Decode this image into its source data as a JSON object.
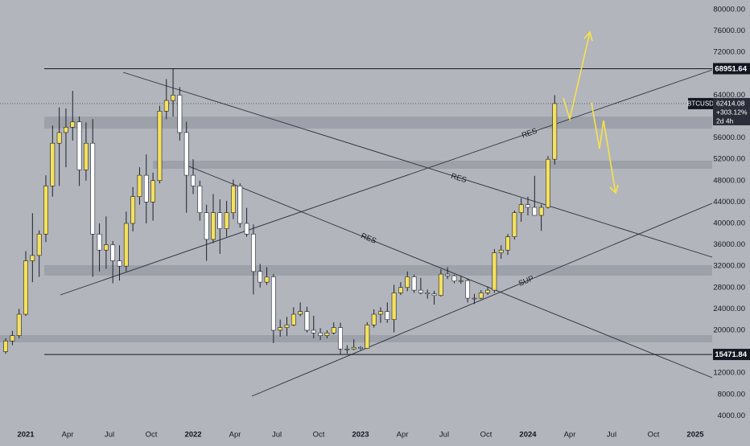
{
  "chart_data": {
    "type": "candlestick",
    "symbol": "BTCUSD",
    "x": [
      2020.88,
      2020.92,
      2020.96,
      2021.0,
      2021.04,
      2021.08,
      2021.12,
      2021.16,
      2021.2,
      2021.24,
      2021.28,
      2021.32,
      2021.36,
      2021.4,
      2021.44,
      2021.48,
      2021.52,
      2021.56,
      2021.6,
      2021.64,
      2021.68,
      2021.72,
      2021.76,
      2021.8,
      2021.84,
      2021.88,
      2021.92,
      2021.96,
      2022.0,
      2022.04,
      2022.08,
      2022.12,
      2022.16,
      2022.2,
      2022.24,
      2022.28,
      2022.32,
      2022.36,
      2022.4,
      2022.44,
      2022.48,
      2022.52,
      2022.56,
      2022.6,
      2022.64,
      2022.68,
      2022.72,
      2022.76,
      2022.8,
      2022.84,
      2022.88,
      2022.92,
      2022.96,
      2023.0,
      2023.04,
      2023.08,
      2023.12,
      2023.16,
      2023.2,
      2023.24,
      2023.28,
      2023.32,
      2023.36,
      2023.4,
      2023.44,
      2023.48,
      2023.52,
      2023.56,
      2023.6,
      2023.64,
      2023.68,
      2023.72,
      2023.76,
      2023.8,
      2023.84,
      2023.88,
      2023.92,
      2023.96,
      2024.0,
      2024.04,
      2024.08,
      2024.12,
      2024.16
    ],
    "open": [
      16000,
      18000,
      19000,
      23000,
      33000,
      34000,
      38000,
      47000,
      55000,
      57000,
      58000,
      59000,
      50000,
      55000,
      38000,
      35000,
      36000,
      33000,
      32000,
      40000,
      45000,
      49000,
      44000,
      48000,
      61000,
      63000,
      64000,
      57000,
      49000,
      47000,
      42000,
      37000,
      42000,
      39000,
      42000,
      47000,
      40000,
      38000,
      31000,
      29000,
      30000,
      20000,
      20500,
      21000,
      23000,
      23500,
      20000,
      19500,
      19000,
      19500,
      20500,
      16500,
      16500,
      16800,
      16600,
      21000,
      23000,
      23500,
      22000,
      27000,
      28000,
      30000,
      27500,
      27000,
      26800,
      26500,
      30500,
      30200,
      29200,
      29300,
      26000,
      26000,
      27000,
      27500,
      34500,
      35000,
      37500,
      42000,
      43500,
      43000,
      41500,
      43000,
      52000
    ],
    "high": [
      18500,
      19900,
      24000,
      34800,
      41900,
      38700,
      49000,
      58300,
      61700,
      61500,
      64800,
      60000,
      58900,
      59500,
      40000,
      41300,
      36700,
      35900,
      42200,
      46800,
      50500,
      52900,
      49500,
      62000,
      67000,
      68900,
      65500,
      59000,
      52000,
      48000,
      43500,
      45500,
      44500,
      44200,
      48200,
      47500,
      42900,
      39800,
      32400,
      31800,
      30500,
      22000,
      22500,
      24300,
      25200,
      24400,
      22700,
      20400,
      20000,
      21500,
      21400,
      17200,
      18300,
      17000,
      21500,
      23900,
      24300,
      25200,
      28500,
      29000,
      31000,
      30400,
      29800,
      27600,
      27400,
      31400,
      31800,
      30400,
      30200,
      29700,
      26800,
      27500,
      28200,
      35200,
      35900,
      38000,
      42400,
      44700,
      45000,
      48900,
      43500,
      52600,
      64000
    ],
    "low": [
      15600,
      17200,
      18500,
      22700,
      29000,
      30000,
      36500,
      45000,
      47000,
      50500,
      55500,
      47000,
      48000,
      30000,
      31000,
      31500,
      28800,
      29300,
      31000,
      38500,
      43500,
      40000,
      40500,
      47500,
      59500,
      60000,
      55500,
      42000,
      45500,
      40500,
      33000,
      36300,
      34300,
      37500,
      40800,
      39200,
      37500,
      26700,
      28000,
      28500,
      17600,
      18800,
      18900,
      20800,
      22600,
      19600,
      18500,
      18200,
      18500,
      19200,
      15500,
      15600,
      16300,
      16300,
      16500,
      20500,
      21400,
      21400,
      19600,
      26600,
      27300,
      27000,
      26700,
      25900,
      24800,
      26300,
      29600,
      28800,
      28700,
      25200,
      24900,
      25800,
      26600,
      27000,
      33400,
      34100,
      37000,
      40300,
      41500,
      41600,
      38600,
      42800,
      51000
    ],
    "close": [
      18000,
      19000,
      23000,
      33000,
      34000,
      38000,
      47000,
      55000,
      57000,
      58000,
      59000,
      50000,
      55000,
      38000,
      35000,
      36000,
      33000,
      32000,
      40000,
      45000,
      49000,
      44000,
      48000,
      61000,
      63000,
      64000,
      57000,
      49000,
      47000,
      42000,
      37000,
      42000,
      39000,
      42000,
      47000,
      40000,
      38000,
      31000,
      29000,
      30000,
      20000,
      20500,
      21000,
      23000,
      23500,
      20000,
      19500,
      19000,
      19500,
      20500,
      16500,
      16500,
      16800,
      16600,
      21000,
      23000,
      23500,
      22000,
      27000,
      28000,
      30000,
      27500,
      27000,
      26800,
      26500,
      30500,
      30200,
      29200,
      29300,
      26000,
      26000,
      27000,
      27500,
      34500,
      35000,
      37500,
      42000,
      43500,
      43000,
      41500,
      43000,
      52000,
      62414.08
    ],
    "up_color": "#f5e15c",
    "down_color": "#ffffff",
    "wick_color": "#1e222d",
    "xlim": [
      2020.846,
      2025.101
    ],
    "xticks": [
      2021,
      {
        "value": 2021.25,
        "label": "Apr"
      },
      {
        "value": 2021.5,
        "label": "Jul"
      },
      {
        "value": 2021.75,
        "label": "Oct"
      },
      2022,
      {
        "value": 2022.25,
        "label": "Apr"
      },
      {
        "value": 2022.5,
        "label": "Jul"
      },
      {
        "value": 2022.75,
        "label": "Oct"
      },
      2023,
      {
        "value": 2023.25,
        "label": "Apr"
      },
      {
        "value": 2023.5,
        "label": "Jul"
      },
      {
        "value": 2023.75,
        "label": "Oct"
      },
      2024,
      {
        "value": 2024.25,
        "label": "Apr"
      },
      {
        "value": 2024.5,
        "label": "Jul"
      },
      {
        "value": 2024.75,
        "label": "Oct"
      },
      2025
    ],
    "ylim": [
      2100,
      81800
    ],
    "yticks": [
      {
        "value": 4000,
        "label": "4000.00"
      },
      {
        "value": 8000,
        "label": "8000.00"
      },
      {
        "value": 12000,
        "label": "12000.00"
      },
      {
        "value": 20000,
        "label": "20000.00"
      },
      {
        "value": 24000,
        "label": "24000.00"
      },
      {
        "value": 28000,
        "label": "28000.00"
      },
      {
        "value": 32000,
        "label": "32000.00"
      },
      {
        "value": 36000,
        "label": "36000.00"
      },
      {
        "value": 40000,
        "label": "40000.00"
      },
      {
        "value": 44000,
        "label": "44000.00"
      },
      {
        "value": 48000,
        "label": "48000.00"
      },
      {
        "value": 52000,
        "label": "52000.00"
      },
      {
        "value": 56000,
        "label": "56000.00"
      },
      {
        "value": 64000,
        "label": "64000.00"
      },
      {
        "value": 72000,
        "label": "72000.00"
      },
      {
        "value": 76000,
        "label": "76000.00"
      },
      {
        "value": 80000,
        "label": "80000.00"
      }
    ],
    "price_lines": [
      68951.64,
      15471.84
    ],
    "last": {
      "value": 62414.08,
      "change": "+303.12%",
      "countdown": "2d 4h"
    },
    "annotations": [
      "RES",
      "RES",
      "RES",
      "SUP"
    ]
  }
}
